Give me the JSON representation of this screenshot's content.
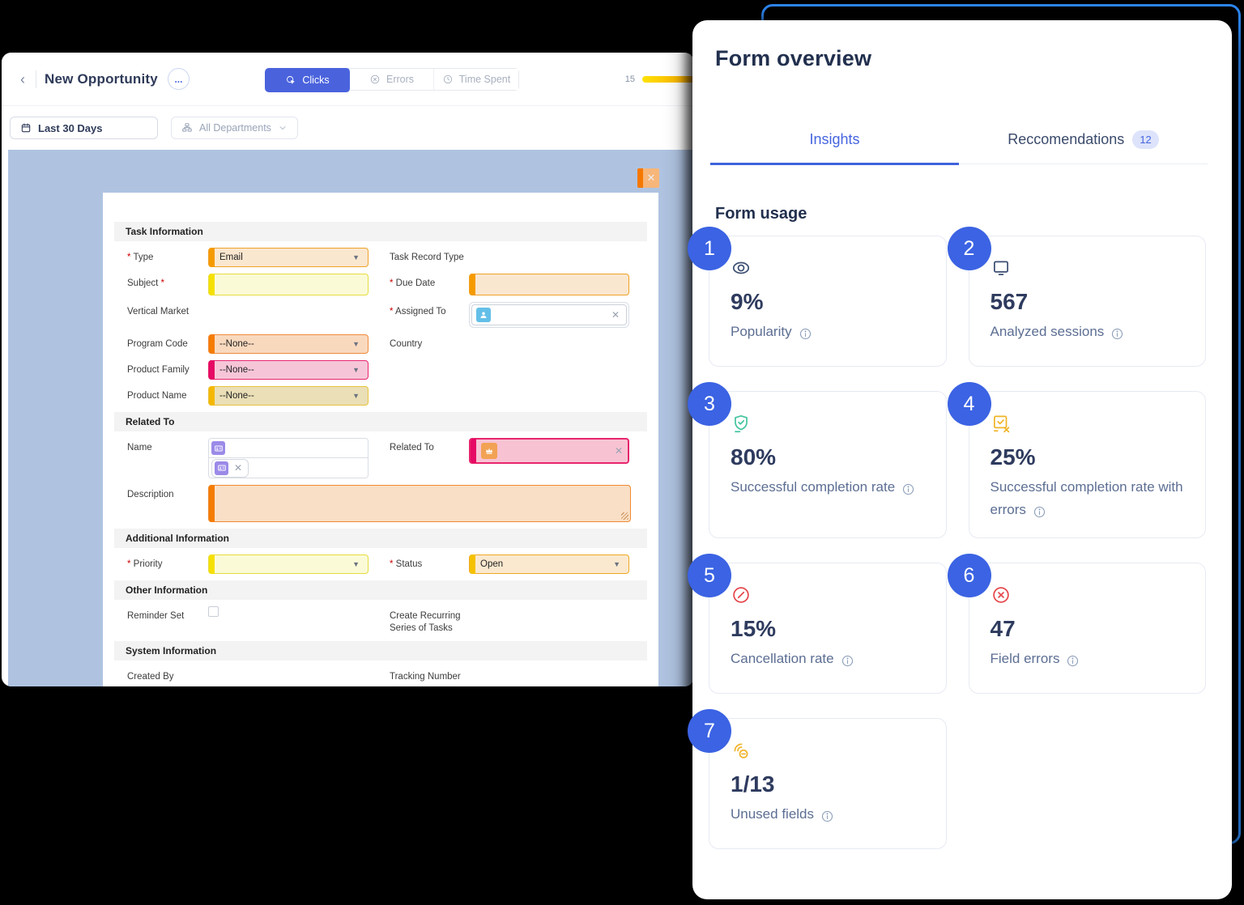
{
  "app": {
    "back_label": "‹",
    "title": "New Opportunity",
    "menu_label": "...",
    "tabs": [
      {
        "label": "Clicks",
        "icon": "cursor-click",
        "active": true
      },
      {
        "label": "Errors",
        "icon": "x-circle",
        "active": false
      },
      {
        "label": "Time Spent",
        "icon": "clock",
        "active": false
      }
    ],
    "legend": {
      "value": "15"
    },
    "filters": {
      "date_range": "Last 30 Days",
      "departments": "All Departments"
    }
  },
  "form": {
    "close_label": "✕",
    "sections": [
      {
        "title": "Task Information",
        "rows": [
          {
            "left": {
              "label": "Type",
              "req": "before",
              "field": {
                "kind": "select",
                "style": "orange",
                "value": "Email"
              }
            },
            "right": {
              "label": "Task Record Type",
              "field": null
            }
          },
          {
            "left": {
              "label": "Subject",
              "req": "after",
              "field": {
                "kind": "input",
                "style": "yellow",
                "value": ""
              }
            },
            "right": {
              "label": "Due Date",
              "req": "before",
              "field": {
                "kind": "input",
                "style": "orange",
                "value": ""
              }
            }
          },
          {
            "left": {
              "label": "Vertical Market",
              "field": null
            },
            "right": {
              "label": "Assigned To",
              "req": "before",
              "field": {
                "kind": "lookup-white",
                "icon": "avatar",
                "value": ""
              }
            }
          },
          {
            "left": {
              "label": "Program Code",
              "field": {
                "kind": "select",
                "style": "peach",
                "value": "--None--"
              }
            },
            "right": {
              "label": "Country",
              "field": null
            }
          },
          {
            "left": {
              "label": "Product Family",
              "field": {
                "kind": "select",
                "style": "pink",
                "value": "--None--"
              }
            },
            "right": null
          },
          {
            "left": {
              "label": "Product Name",
              "field": {
                "kind": "select",
                "style": "tan",
                "value": "--None--"
              }
            },
            "right": null
          }
        ]
      },
      {
        "title": "Related To",
        "rows": [
          {
            "left": {
              "label": "Name",
              "field": {
                "kind": "namebox",
                "icon": "contact",
                "value": ""
              }
            },
            "right": {
              "label": "Related To",
              "field": {
                "kind": "lookup-pink",
                "icon": "opportunity",
                "value": ""
              }
            }
          },
          {
            "left": {
              "label": "Description",
              "field": {
                "kind": "textarea",
                "style": "desc",
                "value": "",
                "wide": true
              }
            },
            "right": null
          }
        ]
      },
      {
        "title": "Additional Information",
        "rows": [
          {
            "left": {
              "label": "Priority",
              "req": "before",
              "field": {
                "kind": "select",
                "style": "yellow",
                "value": ""
              }
            },
            "right": {
              "label": "Status",
              "req": "before",
              "field": {
                "kind": "select",
                "style": "status",
                "value": "Open"
              }
            }
          }
        ]
      },
      {
        "title": "Other Information",
        "rows": [
          {
            "left": {
              "label": "Reminder Set",
              "field": {
                "kind": "checkbox"
              }
            },
            "right": {
              "label": "Create Recurring Series of Tasks",
              "field": null
            }
          }
        ]
      },
      {
        "title": "System Information",
        "rows": [
          {
            "left": {
              "label": "Created By",
              "field": null
            },
            "right": {
              "label": "Tracking Number",
              "field": null
            }
          }
        ]
      }
    ]
  },
  "overview": {
    "title": "Form overview",
    "tabs": [
      {
        "label": "Insights",
        "active": true
      },
      {
        "label": "Reccomendations",
        "badge": "12",
        "active": false
      }
    ],
    "section_title": "Form usage",
    "cards": [
      {
        "num": "1",
        "icon": "eye",
        "color": "navy",
        "value": "9%",
        "label": "Popularity"
      },
      {
        "num": "2",
        "icon": "monitor",
        "color": "navy",
        "value": "567",
        "label": "Analyzed sessions"
      },
      {
        "num": "3",
        "icon": "shield-check",
        "color": "teal",
        "value": "80%",
        "label": "Successful completion rate"
      },
      {
        "num": "4",
        "icon": "form-error",
        "color": "amber",
        "value": "25%",
        "label": "Successful completion rate with errors"
      },
      {
        "num": "5",
        "icon": "slash-circle",
        "color": "red",
        "value": "15%",
        "label": "Cancellation rate"
      },
      {
        "num": "6",
        "icon": "x-circle",
        "color": "red",
        "value": "47",
        "label": "Field errors"
      },
      {
        "num": "7",
        "icon": "click-minus",
        "color": "amber",
        "value": "1/13",
        "label": "Unused fields"
      }
    ]
  },
  "palette": {
    "accent_blue": "#4A63DD",
    "number_badge_blue": "#3B63E3",
    "annotation_blue": "#2E86F0",
    "heat_yellow": "#F5E003",
    "heat_orange": "#F59B00",
    "heat_deep_orange": "#F57C00",
    "heat_pink": "#E60A64",
    "overlay_background": "#AFC3E1",
    "error_red": "#E5484D",
    "success_teal": "#45C4A0",
    "warning_amber": "#F0B429"
  }
}
